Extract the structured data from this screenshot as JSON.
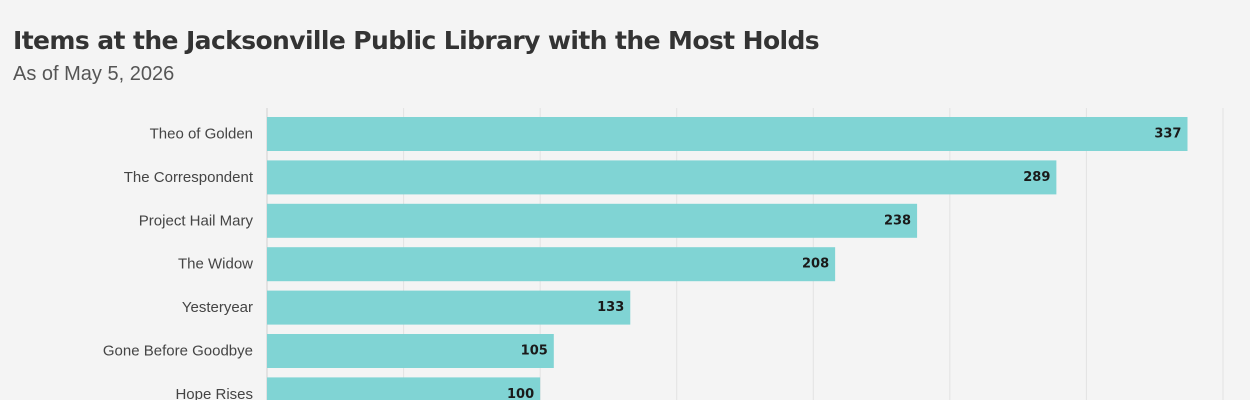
{
  "chart_data": {
    "type": "bar",
    "orientation": "horizontal",
    "title": "Items at the Jacksonville Public Library with the Most Holds",
    "subtitle": "As of May 5, 2026",
    "categories": [
      "Theo of Golden",
      "The Correspondent",
      "Project Hail Mary",
      "The Widow",
      "Yesteryear",
      "Gone Before Goodbye",
      "Hope Rises"
    ],
    "values": [
      337,
      289,
      238,
      208,
      133,
      105,
      100
    ],
    "xlim": [
      0,
      350
    ],
    "grid": true,
    "bar_color": "#80d4d4",
    "data_labels": true
  }
}
